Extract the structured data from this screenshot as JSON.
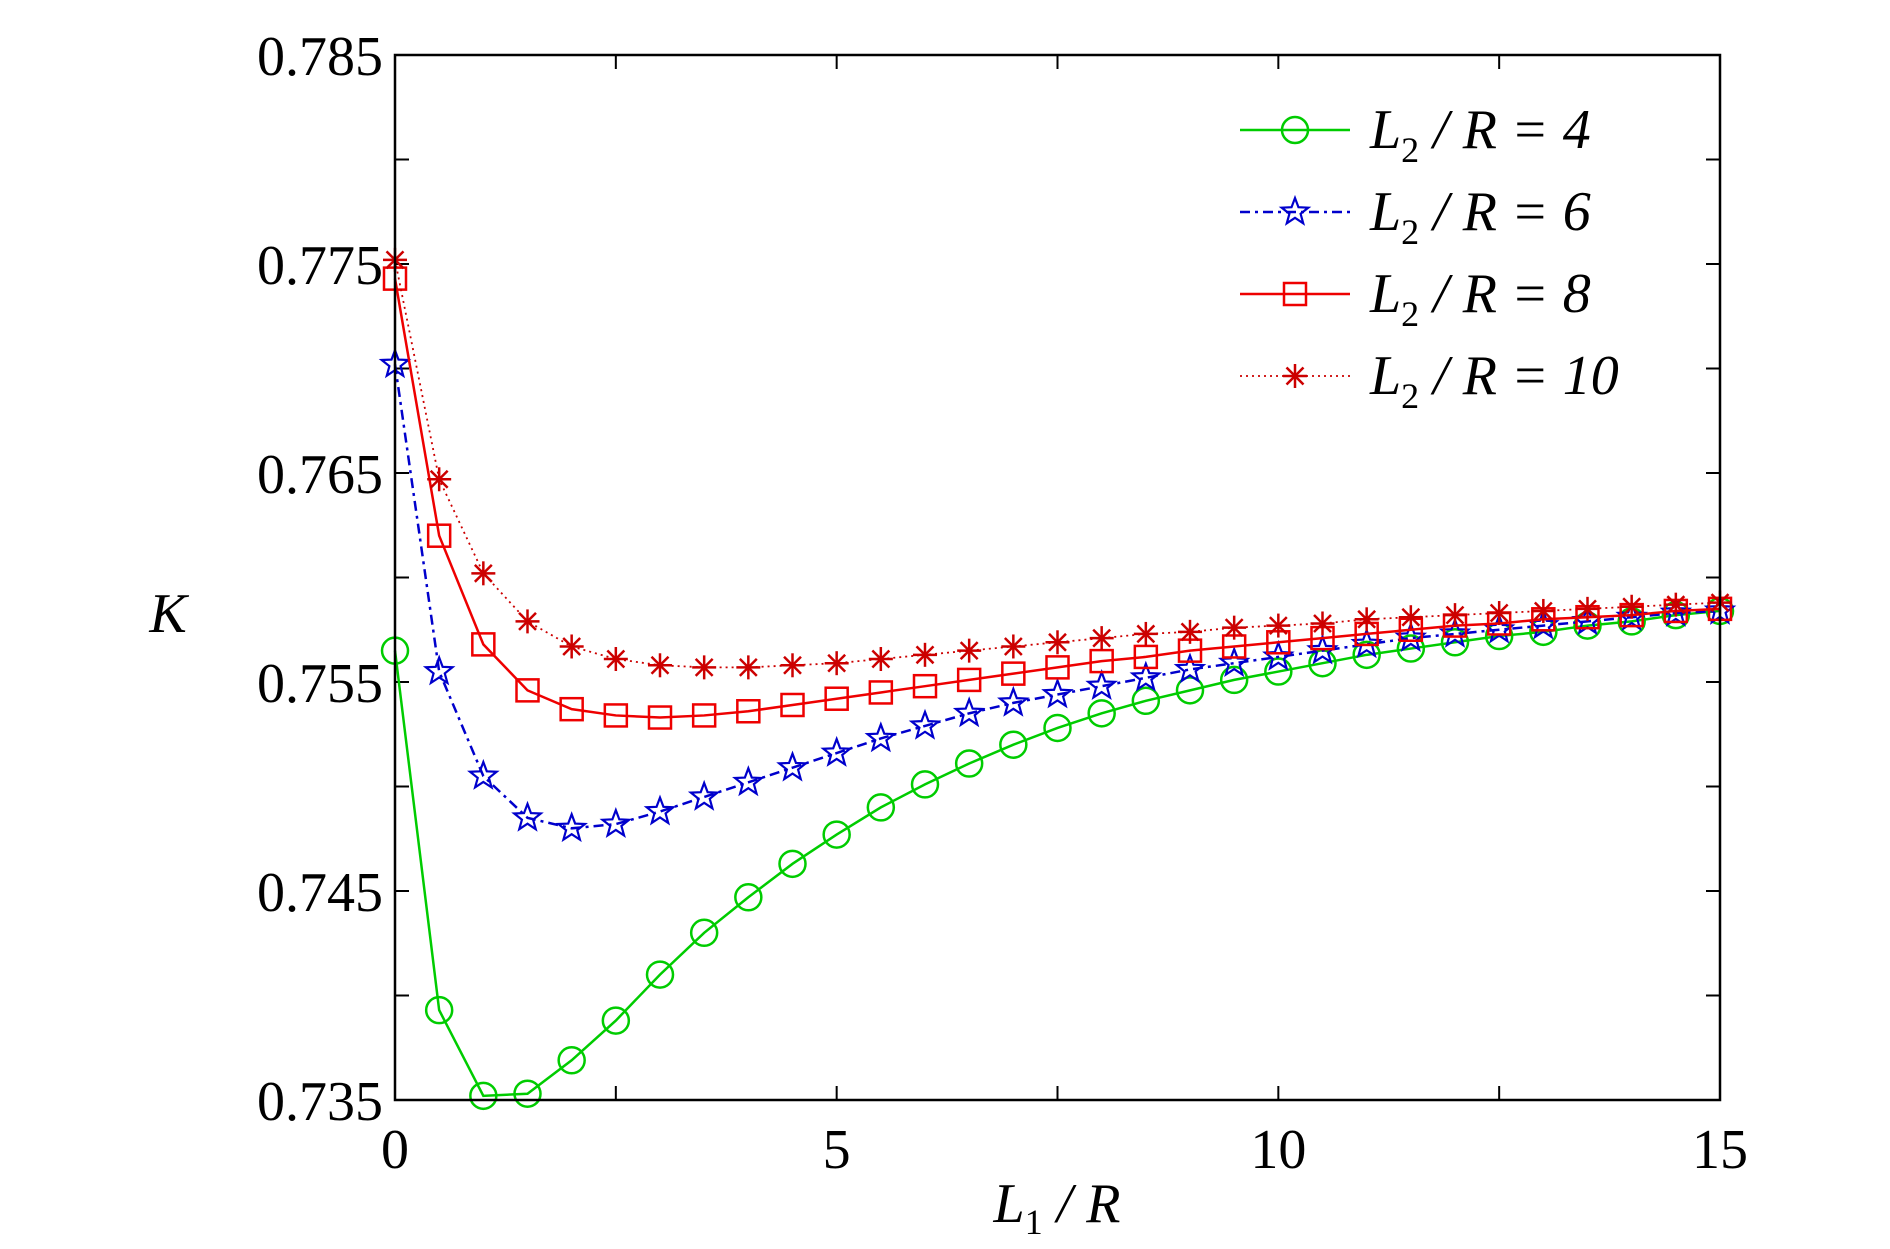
{
  "chart_data": {
    "type": "line",
    "xlabel": "L1 / R",
    "ylabel": "K",
    "xlim": [
      0,
      15
    ],
    "ylim": [
      0.735,
      0.785
    ],
    "x_ticks": [
      "0",
      "5",
      "10",
      "15"
    ],
    "y_ticks": [
      "0.735",
      "0.745",
      "0.755",
      "0.765",
      "0.775",
      "0.785"
    ],
    "x": [
      0,
      0.5,
      1,
      1.5,
      2,
      2.5,
      3,
      3.5,
      4,
      4.5,
      5,
      5.5,
      6,
      6.5,
      7,
      7.5,
      8,
      8.5,
      9,
      9.5,
      10,
      10.5,
      11,
      11.5,
      12,
      12.5,
      13,
      13.5,
      14,
      14.5,
      15
    ],
    "legend_position": "top-right",
    "series": [
      {
        "name": "L2 / R = 4",
        "legend_main": "L",
        "legend_sub": "2",
        "legend_rest": "/ R = 4",
        "color": "#00cc00",
        "marker": "circle",
        "dash": "solid",
        "values": [
          0.7565,
          0.7393,
          0.7352,
          0.7353,
          0.7369,
          0.7388,
          0.741,
          0.743,
          0.7447,
          0.7463,
          0.7477,
          0.749,
          0.7501,
          0.7511,
          0.752,
          0.7528,
          0.7535,
          0.7541,
          0.7546,
          0.7551,
          0.7555,
          0.7559,
          0.7563,
          0.7566,
          0.7569,
          0.7572,
          0.7574,
          0.7577,
          0.7579,
          0.7582,
          0.7584
        ]
      },
      {
        "name": "L2 / R = 6",
        "legend_main": "L",
        "legend_sub": "2",
        "legend_rest": "/ R = 6",
        "color": "#0000cc",
        "marker": "star",
        "dash": "dashdot",
        "values": [
          0.7702,
          0.7555,
          0.7505,
          0.7485,
          0.748,
          0.7482,
          0.7488,
          0.7495,
          0.7502,
          0.7509,
          0.7516,
          0.7523,
          0.7529,
          0.7535,
          0.754,
          0.7544,
          0.7548,
          0.7552,
          0.7556,
          0.7559,
          0.7562,
          0.7565,
          0.7568,
          0.7571,
          0.7573,
          0.7575,
          0.7577,
          0.7579,
          0.7581,
          0.7583,
          0.7584
        ]
      },
      {
        "name": "L2 / R = 8",
        "legend_main": "L",
        "legend_sub": "2",
        "legend_rest": "/ R = 8",
        "color": "#ee0000",
        "marker": "square",
        "dash": "solid",
        "values": [
          0.7743,
          0.762,
          0.7568,
          0.7546,
          0.7537,
          0.7534,
          0.7533,
          0.7534,
          0.7536,
          0.7539,
          0.7542,
          0.7545,
          0.7548,
          0.7551,
          0.7554,
          0.7557,
          0.756,
          0.7562,
          0.7565,
          0.7567,
          0.7569,
          0.7571,
          0.7573,
          0.7575,
          0.7577,
          0.7578,
          0.758,
          0.7581,
          0.7582,
          0.7584,
          0.7585
        ]
      },
      {
        "name": "L2 / R = 10",
        "legend_main": "L",
        "legend_sub": "2",
        "legend_rest": "/ R = 10",
        "color": "#cc0000",
        "marker": "asterisk",
        "dash": "dotted",
        "values": [
          0.7752,
          0.7647,
          0.7602,
          0.7579,
          0.7567,
          0.7561,
          0.7558,
          0.7557,
          0.7557,
          0.7558,
          0.7559,
          0.7561,
          0.7563,
          0.7565,
          0.7567,
          0.7569,
          0.7571,
          0.7573,
          0.7574,
          0.7576,
          0.7577,
          0.7578,
          0.758,
          0.7581,
          0.7582,
          0.7583,
          0.7584,
          0.7585,
          0.7586,
          0.7587,
          0.7588
        ]
      }
    ]
  }
}
